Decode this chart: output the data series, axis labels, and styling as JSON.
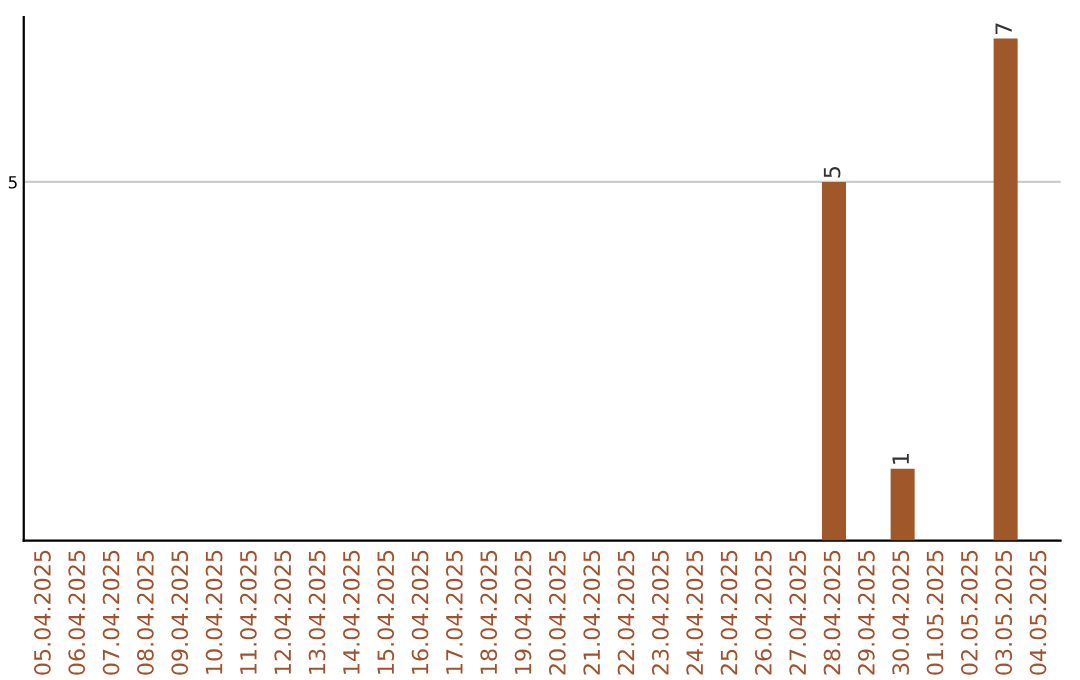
{
  "chart_data": {
    "type": "bar",
    "categories": [
      "05.04.2025",
      "06.04.2025",
      "07.04.2025",
      "08.04.2025",
      "09.04.2025",
      "10.04.2025",
      "11.04.2025",
      "12.04.2025",
      "13.04.2025",
      "14.04.2025",
      "15.04.2025",
      "16.04.2025",
      "17.04.2025",
      "18.04.2025",
      "19.04.2025",
      "20.04.2025",
      "21.04.2025",
      "22.04.2025",
      "23.04.2025",
      "24.04.2025",
      "25.04.2025",
      "26.04.2025",
      "27.04.2025",
      "28.04.2025",
      "29.04.2025",
      "30.04.2025",
      "01.05.2025",
      "02.05.2025",
      "03.05.2025",
      "04.05.2025"
    ],
    "values": [
      null,
      null,
      null,
      null,
      null,
      null,
      null,
      null,
      null,
      null,
      null,
      null,
      null,
      null,
      null,
      null,
      null,
      null,
      null,
      null,
      null,
      null,
      null,
      5,
      null,
      1,
      null,
      null,
      7,
      null
    ],
    "data_labels": true,
    "color": "#a0582a",
    "ylim": [
      0,
      7.3
    ],
    "yticks": [
      5
    ],
    "grid": "y"
  }
}
